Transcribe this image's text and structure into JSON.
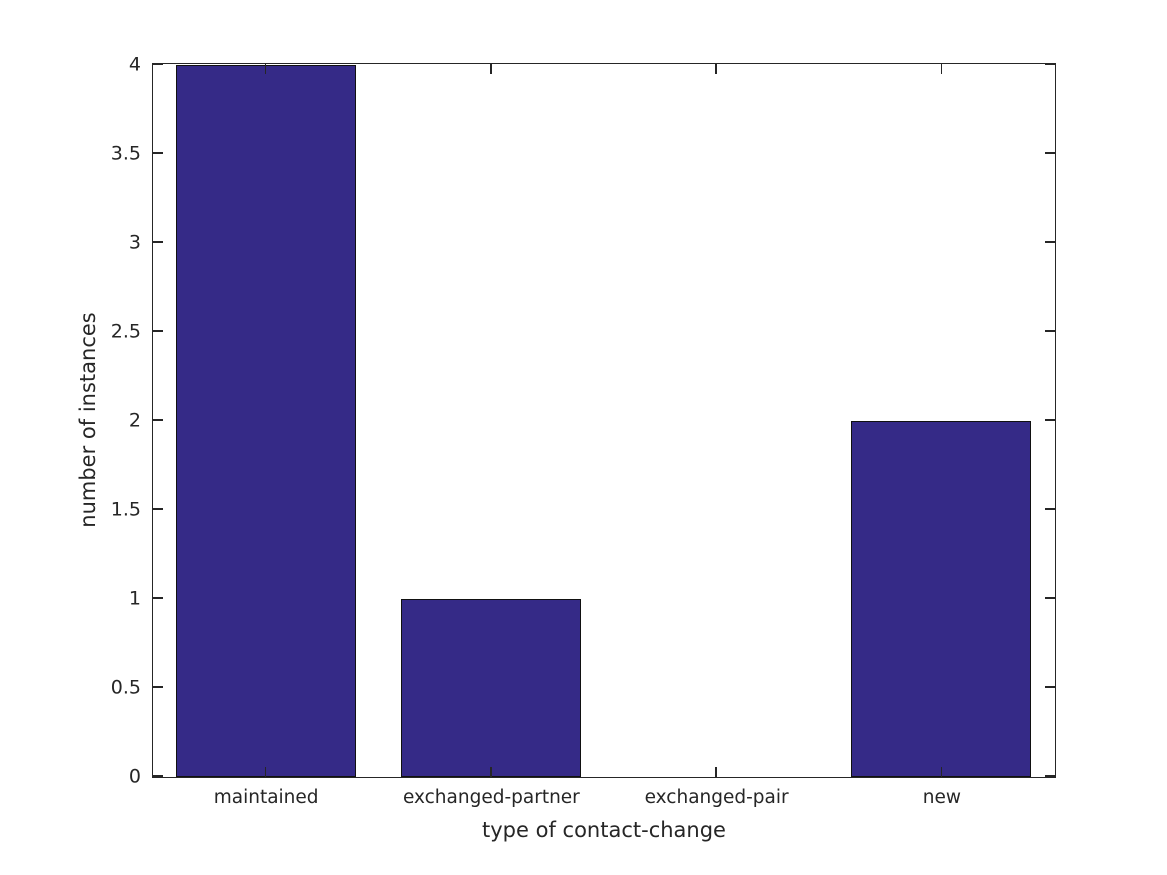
{
  "figure": {
    "background": "#ffffff"
  },
  "chart_data": {
    "type": "bar",
    "categories": [
      "maintained",
      "exchanged-partner",
      "exchanged-pair",
      "new"
    ],
    "values": [
      4,
      1,
      0,
      2
    ],
    "title": "",
    "xlabel": "type of contact-change",
    "ylabel": "number of instances",
    "ylim": [
      0,
      4
    ],
    "yticks": [
      0,
      0.5,
      1,
      1.5,
      2,
      2.5,
      3,
      3.5,
      4
    ],
    "bar_width_fraction": 0.8,
    "grid": false,
    "legend": null,
    "box": true,
    "tick_direction": "in",
    "colors": {
      "bar_fill": "#352A87",
      "bar_edge": "#111111",
      "axis": "#262626",
      "text": "#262626"
    }
  }
}
